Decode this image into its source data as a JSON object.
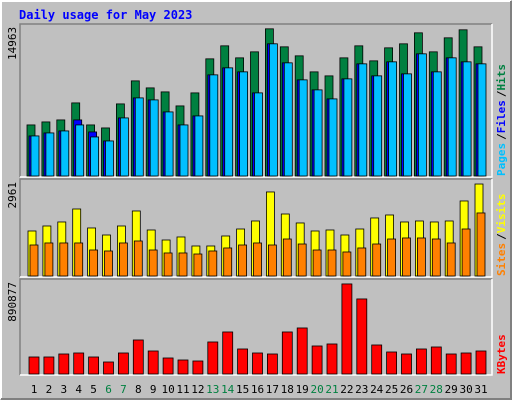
{
  "title": "Daily usage for May 2023",
  "chart_data": [
    {
      "type": "bar",
      "legend_separator": "/",
      "ylim": [
        0,
        15250
      ],
      "yticks": [
        14963
      ],
      "series": [
        {
          "name": "Hits",
          "color": "#008040",
          "values": [
            5192,
            5497,
            5701,
            7431,
            5192,
            4886,
            7330,
            9671,
            8958,
            8551,
            7126,
            8449,
            11911,
            13234,
            12012,
            12623,
            14963,
            13132,
            12216,
            10587,
            10180,
            12012,
            13234,
            11707,
            13030,
            13438,
            14557,
            12623,
            14048,
            14863,
            13132
          ]
        },
        {
          "name": "Files",
          "color": "#0000ff",
          "values": [
            4072,
            4377,
            4581,
            5701,
            4479,
            3563,
            5904,
            7940,
            7737,
            6515,
            5192,
            6108,
            10282,
            10994,
            10587,
            8449,
            13438,
            11503,
            9773,
            8755,
            7839,
            9875,
            11402,
            10180,
            11605,
            10384,
            12420,
            10587,
            12012,
            11605,
            11402
          ]
        },
        {
          "name": "Pages",
          "color": "#00c0ff",
          "values": [
            4072,
            4377,
            4581,
            5192,
            3970,
            3563,
            5904,
            7940,
            7737,
            6515,
            5192,
            6108,
            10282,
            10994,
            10587,
            8449,
            13438,
            11503,
            9773,
            8755,
            7839,
            9875,
            11402,
            10180,
            11605,
            10384,
            12420,
            10587,
            12012,
            11605,
            11402
          ]
        }
      ]
    },
    {
      "type": "bar",
      "legend_separator": "/",
      "ylim": [
        0,
        3058
      ],
      "yticks": [
        2961
      ],
      "series": [
        {
          "name": "Visits",
          "color": "#ffff00",
          "values": [
            1449,
            1610,
            1739,
            2157,
            1546,
            1320,
            1610,
            2093,
            1481,
            1159,
            1256,
            966,
            966,
            1288,
            1513,
            1771,
            2705,
            1996,
            1707,
            1449,
            1481,
            1320,
            1513,
            1868,
            1964,
            1739,
            1771,
            1739,
            1771,
            2415,
            2961
          ]
        },
        {
          "name": "Sites",
          "color": "#ff8000",
          "values": [
            998,
            1063,
            1063,
            1063,
            837,
            805,
            1063,
            1127,
            837,
            741,
            741,
            708,
            805,
            902,
            998,
            1063,
            998,
            1191,
            1030,
            837,
            837,
            773,
            902,
            1030,
            1191,
            1224,
            1224,
            1191,
            1063,
            1513,
            2029
          ]
        }
      ]
    },
    {
      "type": "bar",
      "ylim": [
        0,
        920000
      ],
      "yticks": [
        890877
      ],
      "categories": [
        "1",
        "2",
        "3",
        "4",
        "5",
        "6",
        "7",
        "8",
        "9",
        "10",
        "11",
        "12",
        "13",
        "14",
        "15",
        "16",
        "17",
        "18",
        "19",
        "20",
        "21",
        "22",
        "23",
        "24",
        "25",
        "26",
        "27",
        "28",
        "29",
        "30",
        "31"
      ],
      "category_colors": [
        "#000000",
        "#000000",
        "#000000",
        "#000000",
        "#000000",
        "#008040",
        "#008040",
        "#000000",
        "#000000",
        "#000000",
        "#000000",
        "#000000",
        "#008040",
        "#008040",
        "#000000",
        "#000000",
        "#000000",
        "#000000",
        "#000000",
        "#008040",
        "#008040",
        "#000000",
        "#000000",
        "#000000",
        "#000000",
        "#000000",
        "#008040",
        "#008040",
        "#000000",
        "#000000",
        "#000000"
      ],
      "series": [
        {
          "name": "KBytes",
          "color": "#ff0000",
          "values": [
            168283,
            168283,
            197980,
            207879,
            168283,
            118788,
            207879,
            336566,
            227677,
            158384,
            138586,
            128687,
            316768,
            415758,
            247475,
            207879,
            197980,
            415758,
            455354,
            277172,
            296970,
            890877,
            742425,
            287071,
            217778,
            197980,
            247475,
            267273,
            197980,
            207879,
            227677
          ]
        }
      ]
    }
  ]
}
